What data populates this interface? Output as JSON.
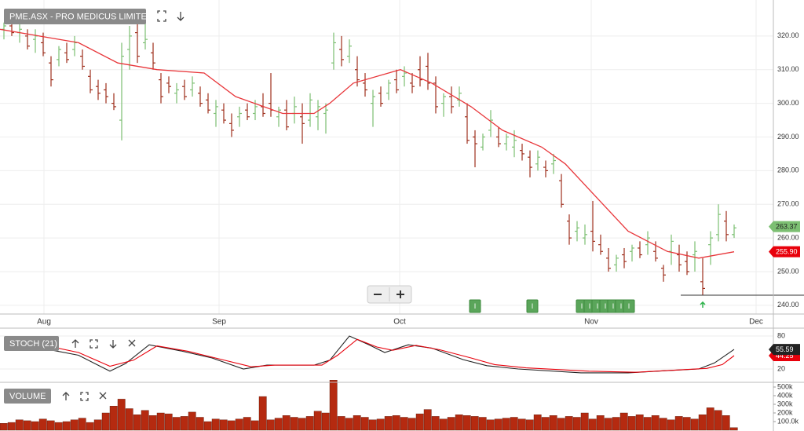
{
  "chart_data": [
    {
      "type": "ohlc",
      "title": "PME.ASX - PRO MEDICUS LIMITED",
      "up_color": "#7cbf72",
      "down_color": "#9e2e1c",
      "ohlc": [
        [
          322,
          324,
          319,
          323
        ],
        [
          323,
          326,
          320,
          321
        ],
        [
          321,
          324,
          318,
          322
        ],
        [
          320,
          322,
          316,
          317
        ],
        [
          319,
          322,
          315,
          320
        ],
        [
          318,
          321,
          314,
          315
        ],
        [
          312,
          314,
          305,
          307
        ],
        [
          313,
          317,
          311,
          316
        ],
        [
          315,
          318,
          312,
          313
        ],
        [
          316,
          320,
          314,
          318
        ],
        [
          314,
          316,
          310,
          311
        ],
        [
          308,
          310,
          303,
          304
        ],
        [
          305,
          307,
          301,
          303
        ],
        [
          304,
          306,
          300,
          302
        ],
        [
          300,
          303,
          298,
          299
        ],
        [
          295,
          318,
          289,
          314
        ],
        [
          316,
          323,
          310,
          320
        ],
        [
          321,
          325,
          312,
          314
        ],
        [
          318,
          324,
          316,
          319
        ],
        [
          315,
          318,
          310,
          312
        ],
        [
          307,
          309,
          300,
          302
        ],
        [
          306,
          308,
          303,
          305
        ],
        [
          303,
          306,
          300,
          304
        ],
        [
          305,
          307,
          301,
          302
        ],
        [
          304,
          308,
          302,
          306
        ],
        [
          303,
          305,
          299,
          300
        ],
        [
          301,
          303,
          297,
          298
        ],
        [
          297,
          301,
          293,
          299
        ],
        [
          298,
          300,
          294,
          295
        ],
        [
          294,
          297,
          290,
          292
        ],
        [
          296,
          299,
          293,
          297
        ],
        [
          298,
          300,
          295,
          296
        ],
        [
          297,
          301,
          295,
          299
        ],
        [
          299,
          303,
          296,
          297
        ],
        [
          300,
          309,
          296,
          298
        ],
        [
          296,
          299,
          293,
          298
        ],
        [
          298,
          301,
          292,
          293
        ],
        [
          297,
          302,
          294,
          299
        ],
        [
          296,
          300,
          288,
          294
        ],
        [
          295,
          303,
          293,
          301
        ],
        [
          296,
          301,
          292,
          299
        ],
        [
          297,
          300,
          291,
          298
        ],
        [
          312,
          321,
          310,
          318
        ],
        [
          316,
          320,
          311,
          313
        ],
        [
          314,
          319,
          312,
          317
        ],
        [
          310,
          314,
          305,
          307
        ],
        [
          306,
          309,
          302,
          304
        ],
        [
          300,
          304,
          293,
          302
        ],
        [
          303,
          305,
          299,
          300
        ],
        [
          303,
          307,
          301,
          306
        ],
        [
          307,
          310,
          303,
          304
        ],
        [
          308,
          311,
          305,
          309
        ],
        [
          306,
          309,
          303,
          305
        ],
        [
          310,
          314,
          305,
          307
        ],
        [
          311,
          315,
          304,
          306
        ],
        [
          306,
          308,
          297,
          299
        ],
        [
          300,
          303,
          296,
          302
        ],
        [
          302,
          305,
          297,
          299
        ],
        [
          301,
          305,
          299,
          303
        ],
        [
          296,
          300,
          288,
          289
        ],
        [
          290,
          292,
          281,
          288
        ],
        [
          287,
          291,
          286,
          290
        ],
        [
          292,
          298,
          290,
          295
        ],
        [
          290,
          293,
          287,
          288
        ],
        [
          288,
          291,
          286,
          290
        ],
        [
          287,
          292,
          284,
          289
        ],
        [
          286,
          288,
          283,
          285
        ],
        [
          284,
          286,
          278,
          281
        ],
        [
          282,
          286,
          280,
          284
        ],
        [
          281,
          283,
          278,
          280
        ],
        [
          282,
          285,
          279,
          283
        ],
        [
          277,
          279,
          269,
          270
        ],
        [
          265,
          267,
          258,
          260
        ],
        [
          262,
          265,
          259,
          263
        ],
        [
          260,
          264,
          258,
          261
        ],
        [
          262,
          271,
          256,
          259
        ],
        [
          258,
          261,
          255,
          256
        ],
        [
          254,
          257,
          250,
          251
        ],
        [
          252,
          255,
          250,
          254
        ],
        [
          255,
          257,
          251,
          253
        ],
        [
          256,
          258,
          253,
          257
        ],
        [
          257,
          259,
          254,
          255
        ],
        [
          258,
          262,
          255,
          260
        ],
        [
          256,
          259,
          253,
          254
        ],
        [
          251,
          252,
          247,
          249
        ],
        [
          256,
          261,
          252,
          259
        ],
        [
          255,
          258,
          250,
          252
        ],
        [
          253,
          256,
          249,
          250
        ],
        [
          255,
          259,
          250,
          256
        ],
        [
          247,
          254,
          243,
          245
        ],
        [
          258,
          262,
          252,
          260
        ],
        [
          261,
          270,
          259,
          267
        ],
        [
          265,
          268,
          259,
          261
        ],
        [
          261,
          264,
          260,
          263
        ]
      ],
      "ma": {
        "color": "#e8363a",
        "x": [
          -0.5,
          4.5,
          9.5,
          14.5,
          19.5,
          25.5,
          29.5,
          35.5,
          39.5,
          41.5,
          44.5,
          50.5,
          54.5,
          59.5,
          63.5,
          68.5,
          71.5,
          75.5,
          79.5,
          84.5,
          88.5,
          93
        ],
        "values": [
          322,
          320,
          318,
          312,
          310,
          309,
          302,
          297,
          297,
          300,
          306,
          310,
          306,
          299,
          292,
          287,
          282,
          272,
          262,
          256,
          254,
          255.9
        ]
      },
      "xlim": [
        -0.5,
        98
      ],
      "xticks": [
        {
          "value": 5.1,
          "label": "Aug"
        },
        {
          "value": 27.4,
          "label": "Sep"
        },
        {
          "value": 50.4,
          "label": "Oct"
        },
        {
          "value": 74.8,
          "label": "Nov"
        },
        {
          "value": 95.8,
          "label": "Dec"
        }
      ],
      "ylim": [
        237.4,
        330.7
      ],
      "yticks": [
        {
          "value": 240,
          "label": "240.00"
        },
        {
          "value": 250,
          "label": "250.00"
        },
        {
          "value": 260,
          "label": "260.00"
        },
        {
          "value": 270,
          "label": "270.00"
        },
        {
          "value": 280,
          "label": "280.00"
        },
        {
          "value": 290,
          "label": "290.00"
        },
        {
          "value": 300,
          "label": "300.00"
        },
        {
          "value": 310,
          "label": "310.00"
        },
        {
          "value": 320,
          "label": "320.00"
        }
      ],
      "grid": true,
      "last_price": {
        "value": 263.37,
        "color": "#7cbf72"
      },
      "ma_last": {
        "value": 255.9,
        "label": "255.90",
        "color": "#e8000b"
      },
      "support": {
        "value": 243,
        "start": 86.2
      },
      "buy_signal": 89,
      "signals": [
        {
          "index": 60,
          "label": "I"
        },
        {
          "index": 67.3,
          "label": "I"
        },
        {
          "index": 73.6,
          "label": "I"
        },
        {
          "index": 74.6,
          "label": "I"
        },
        {
          "index": 75.6,
          "label": "I"
        },
        {
          "index": 76.6,
          "label": "I"
        },
        {
          "index": 77.6,
          "label": "I"
        },
        {
          "index": 78.6,
          "label": "I"
        },
        {
          "index": 79.6,
          "label": "I"
        }
      ]
    },
    {
      "type": "line",
      "title": "STOCH (21)",
      "series": [
        {
          "color": "#222222",
          "last": 55.59,
          "x": [
            5.5,
            9.5,
            13.5,
            15.5,
            18.5,
            22.5,
            26.5,
            30.5,
            33.5,
            39.5,
            41.5,
            44,
            46.5,
            48.5,
            51.5,
            54.5,
            58.5,
            61.5,
            65.5,
            73.5,
            79.5,
            84.5,
            88.5,
            90.5,
            93
          ],
          "values": [
            56,
            45,
            16,
            30,
            64,
            53,
            40,
            20,
            27,
            27,
            36,
            80,
            64,
            50,
            64,
            58,
            37,
            26,
            20,
            13,
            13,
            17,
            20,
            31,
            55.59
          ]
        },
        {
          "color": "#e8000b",
          "last": 44.25,
          "x": [
            5.5,
            9.5,
            13.5,
            16.5,
            19.5,
            23.5,
            27.5,
            31.5,
            34.5,
            40.5,
            42.5,
            45,
            47.5,
            49.5,
            52.5,
            55.5,
            59.5,
            62.5,
            66.5,
            74.5,
            80.5,
            85.5,
            89.5,
            91.5,
            93
          ],
          "values": [
            62,
            50,
            25,
            36,
            62,
            52,
            38,
            24,
            27,
            27,
            45,
            74,
            60,
            54,
            63,
            55,
            40,
            28,
            22,
            16,
            14,
            18,
            21,
            28,
            44.25
          ]
        }
      ],
      "ylim": [
        -4.3,
        94.3
      ],
      "yticks": [
        20,
        80
      ]
    },
    {
      "type": "bar",
      "title": "VOLUME",
      "color": "#b52a10",
      "values": [
        80000,
        90000,
        120000,
        110000,
        100000,
        130000,
        110000,
        90000,
        100000,
        120000,
        140000,
        90000,
        120000,
        200000,
        280000,
        360000,
        250000,
        180000,
        230000,
        170000,
        200000,
        190000,
        150000,
        160000,
        210000,
        150000,
        100000,
        130000,
        120000,
        110000,
        130000,
        150000,
        110000,
        390000,
        120000,
        140000,
        170000,
        150000,
        140000,
        160000,
        220000,
        200000,
        580000,
        160000,
        140000,
        170000,
        150000,
        120000,
        130000,
        160000,
        170000,
        150000,
        140000,
        190000,
        240000,
        160000,
        130000,
        150000,
        180000,
        170000,
        160000,
        150000,
        120000,
        130000,
        140000,
        150000,
        130000,
        120000,
        180000,
        150000,
        170000,
        140000,
        160000,
        150000,
        200000,
        130000,
        170000,
        140000,
        150000,
        200000,
        160000,
        180000,
        150000,
        170000,
        140000,
        120000,
        160000,
        150000,
        130000,
        180000,
        260000,
        230000,
        170000,
        30000
      ],
      "ylim": [
        0,
        600000
      ],
      "yticks": [
        {
          "value": 100000,
          "label": "100.0k"
        },
        {
          "value": 200000,
          "label": "200k"
        },
        {
          "value": 300000,
          "label": "300k"
        },
        {
          "value": 400000,
          "label": "400k"
        },
        {
          "value": 500000,
          "label": "500k"
        }
      ]
    }
  ]
}
